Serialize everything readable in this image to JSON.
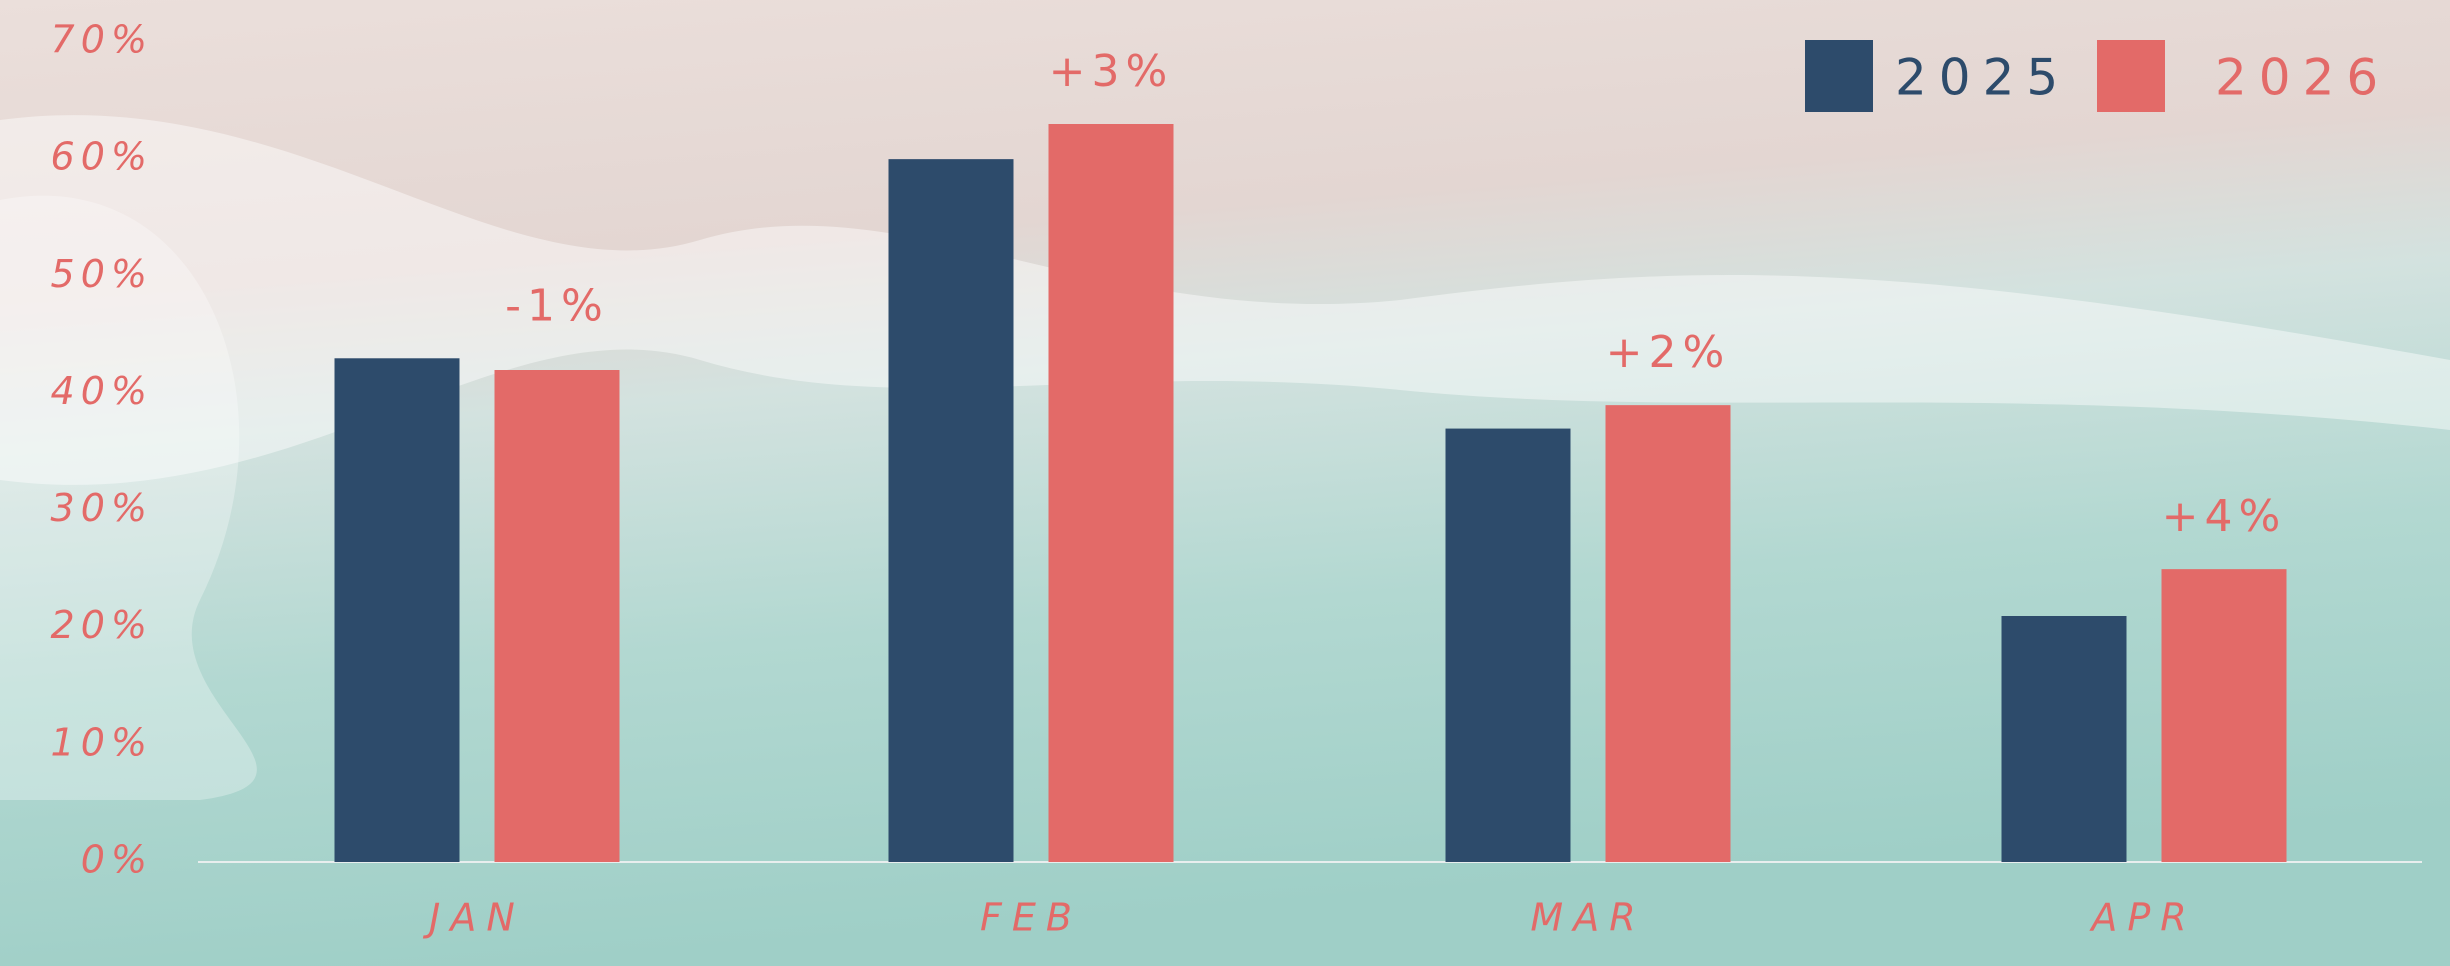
{
  "chart_data": {
    "type": "bar",
    "categories": [
      "JAN",
      "FEB",
      "MAR",
      "APR"
    ],
    "series": [
      {
        "name": "2025",
        "color": "#2d4b6b",
        "values": [
          43,
          60,
          37,
          21
        ]
      },
      {
        "name": "2026",
        "color": "#e36a68",
        "values": [
          42,
          63,
          39,
          25
        ]
      }
    ],
    "annotations": [
      "-1%",
      "+3%",
      "+2%",
      "+4%"
    ],
    "ylim": [
      0,
      70
    ],
    "yticks": [
      {
        "value": 0,
        "label": "0%"
      },
      {
        "value": 10,
        "label": "10%"
      },
      {
        "value": 20,
        "label": "20%"
      },
      {
        "value": 30,
        "label": "30%"
      },
      {
        "value": 40,
        "label": "40%"
      },
      {
        "value": 50,
        "label": "50%"
      },
      {
        "value": 60,
        "label": "60%"
      },
      {
        "value": 70,
        "label": "70%"
      }
    ],
    "legend": "top-right"
  }
}
